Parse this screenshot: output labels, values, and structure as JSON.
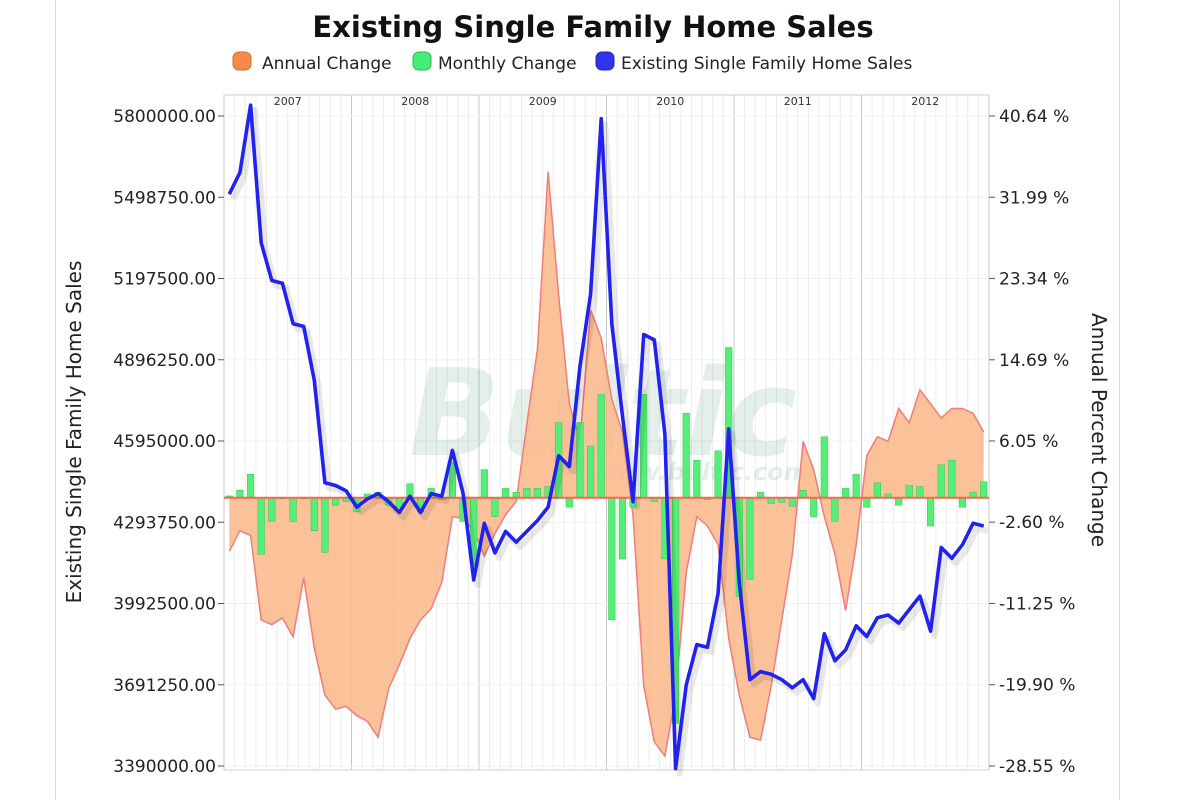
{
  "chart_data": {
    "type": "line",
    "title": "Existing Single Family Home Sales",
    "legend": {
      "placement": "top",
      "entries": [
        {
          "label": "Annual Change",
          "color": "#f58a4b"
        },
        {
          "label": "Monthly Change",
          "color": "#44ee77"
        },
        {
          "label": "Existing Single Family Home Sales",
          "color": "#3333ee"
        }
      ]
    },
    "watermark": {
      "text": "Bultic",
      "subtext": "www.bultic.com"
    },
    "xlabel": "",
    "years": [
      "2007",
      "2008",
      "2009",
      "2010",
      "2011",
      "2012"
    ],
    "x": [
      "2007-01",
      "2007-02",
      "2007-03",
      "2007-04",
      "2007-05",
      "2007-06",
      "2007-07",
      "2007-08",
      "2007-09",
      "2007-10",
      "2007-11",
      "2007-12",
      "2008-01",
      "2008-02",
      "2008-03",
      "2008-04",
      "2008-05",
      "2008-06",
      "2008-07",
      "2008-08",
      "2008-09",
      "2008-10",
      "2008-11",
      "2008-12",
      "2009-01",
      "2009-02",
      "2009-03",
      "2009-04",
      "2009-05",
      "2009-06",
      "2009-07",
      "2009-08",
      "2009-09",
      "2009-10",
      "2009-11",
      "2009-12",
      "2010-01",
      "2010-02",
      "2010-03",
      "2010-04",
      "2010-05",
      "2010-06",
      "2010-07",
      "2010-08",
      "2010-09",
      "2010-10",
      "2010-11",
      "2010-12",
      "2011-01",
      "2011-02",
      "2011-03",
      "2011-04",
      "2011-05",
      "2011-06",
      "2011-07",
      "2011-08",
      "2011-09",
      "2011-10",
      "2011-11",
      "2011-12",
      "2012-01",
      "2012-02",
      "2012-03",
      "2012-04",
      "2012-05",
      "2012-06",
      "2012-07",
      "2012-08",
      "2012-09",
      "2012-10",
      "2012-11",
      "2012-12"
    ],
    "left_axis": {
      "title": "Existing Single Family Home Sales",
      "ylim": [
        3390000,
        5800000
      ],
      "ticks": [
        "5800000.00",
        "5498750.00",
        "5197500.00",
        "4896250.00",
        "4595000.00",
        "4293750.00",
        "3992500.00",
        "3691250.00",
        "3390000.00"
      ],
      "tick_values": [
        5800000,
        5498750,
        5197500,
        4896250,
        4595000,
        4293750,
        3992500,
        3691250,
        3390000
      ]
    },
    "right_axis": {
      "title": "Annual Percent Change",
      "ylim": [
        -28.55,
        40.64
      ],
      "ticks": [
        "40.64 %",
        "31.99 %",
        "23.34 %",
        "14.69 %",
        "6.05 %",
        "-2.60 %",
        "-11.25 %",
        "-19.90 %",
        "-28.55 %"
      ],
      "tick_values": [
        40.64,
        31.99,
        23.34,
        14.69,
        6.05,
        -2.6,
        -11.25,
        -19.9,
        -28.55
      ]
    },
    "series": [
      {
        "name": "Existing Single Family Home Sales",
        "axis": "left",
        "kind": "line",
        "values": [
          5510000,
          5590000,
          5840000,
          5330000,
          5190000,
          5180000,
          5030000,
          5020000,
          4820000,
          4440000,
          4430000,
          4410000,
          4350000,
          4380000,
          4400000,
          4370000,
          4330000,
          4390000,
          4330000,
          4400000,
          4390000,
          4560000,
          4400000,
          4080000,
          4290000,
          4180000,
          4260000,
          4220000,
          4260000,
          4300000,
          4350000,
          4540000,
          4500000,
          4870000,
          5140000,
          5790000,
          5030000,
          4690000,
          4370000,
          4990000,
          4970000,
          4620000,
          3380000,
          3690000,
          3840000,
          3830000,
          4030000,
          4640000,
          4070000,
          3710000,
          3740000,
          3730000,
          3710000,
          3680000,
          3710000,
          3640000,
          3880000,
          3780000,
          3820000,
          3910000,
          3870000,
          3940000,
          3950000,
          3920000,
          3970000,
          4020000,
          3890000,
          4200000,
          4160000,
          4210000,
          4290000,
          4280000
        ]
      },
      {
        "name": "Annual Change",
        "axis": "right",
        "kind": "area",
        "values": [
          -5.7,
          -3.5,
          -4.0,
          -13.0,
          -13.5,
          -12.8,
          -14.8,
          -8.5,
          -16.0,
          -21.0,
          -22.5,
          -22.2,
          -23.2,
          -23.8,
          -25.5,
          -20.3,
          -17.8,
          -15.0,
          -13.0,
          -11.8,
          -9.0,
          -2.0,
          -2.2,
          -3.5,
          -6.2,
          -3.8,
          -1.8,
          -0.4,
          7.8,
          15.8,
          34.7,
          21.5,
          10.0,
          6.0,
          20.0,
          17.0,
          10.5,
          7.0,
          -2.0,
          -20.0,
          -26.0,
          -27.5,
          -21.0,
          -8.0,
          -2.0,
          -3.0,
          -5.0,
          -15.0,
          -21.0,
          -25.5,
          -25.8,
          -20.0,
          -13.0,
          -6.0,
          6.0,
          3.0,
          -2.0,
          -6.0,
          -12.0,
          -5.0,
          4.5,
          6.5,
          6.0,
          9.5,
          8.0,
          11.5,
          10.0,
          8.5,
          9.5,
          9.5,
          9.0,
          7.0
        ]
      },
      {
        "name": "Monthly Change",
        "axis": "right",
        "kind": "bar",
        "values": [
          0.2,
          0.8,
          2.5,
          -6.0,
          -2.5,
          0.0,
          -2.5,
          0.0,
          -3.5,
          -5.8,
          -0.8,
          -0.4,
          -1.5,
          0.4,
          0.6,
          -0.8,
          -1.0,
          1.5,
          -1.5,
          1.0,
          -0.2,
          3.8,
          -2.5,
          -7.2,
          3.0,
          -2.0,
          1.0,
          0.6,
          1.0,
          1.0,
          1.2,
          8.0,
          -1.0,
          8.0,
          5.5,
          11.0,
          -13.0,
          -6.5,
          -1.0,
          11.0,
          -0.4,
          -6.5,
          -24.0,
          9.0,
          4.0,
          -0.2,
          5.0,
          16.0,
          -10.5,
          -8.7,
          0.6,
          -0.6,
          -0.5,
          -0.9,
          0.8,
          -2.0,
          6.5,
          -2.5,
          1.0,
          2.5,
          -1.0,
          1.6,
          0.4,
          -0.8,
          1.3,
          1.2,
          -3.0,
          3.5,
          4.0,
          -1.0,
          0.6,
          1.7
        ]
      }
    ],
    "grid": true
  }
}
